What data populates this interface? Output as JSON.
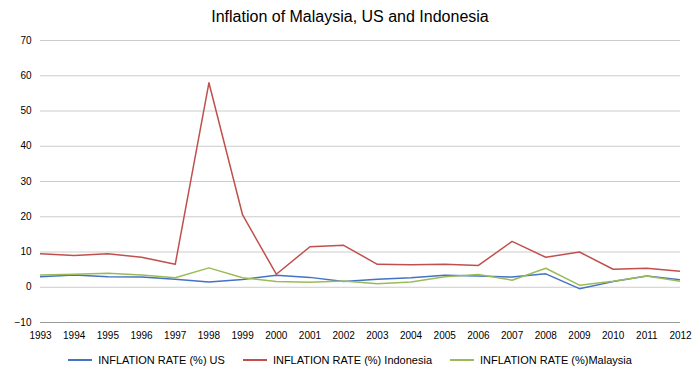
{
  "chart_data": {
    "type": "line",
    "title": "Inflation of Malaysia, US and Indonesia",
    "x": [
      1993,
      1994,
      1995,
      1996,
      1997,
      1998,
      1999,
      2000,
      2001,
      2002,
      2003,
      2004,
      2005,
      2006,
      2007,
      2008,
      2009,
      2010,
      2011,
      2012
    ],
    "series": [
      {
        "name": "INFLATION RATE (%) US",
        "color": "#4472c4",
        "values": [
          3.0,
          3.5,
          3.0,
          2.9,
          2.3,
          1.5,
          2.2,
          3.4,
          2.8,
          1.6,
          2.3,
          2.7,
          3.4,
          3.2,
          2.9,
          3.8,
          -0.4,
          1.6,
          3.2,
          2.1
        ]
      },
      {
        "name": "INFLATION RATE (%) Indonesia",
        "color": "#c0504d",
        "values": [
          9.5,
          9.0,
          9.5,
          8.5,
          6.5,
          58.0,
          20.5,
          3.7,
          11.5,
          11.9,
          6.5,
          6.4,
          6.5,
          6.2,
          13.0,
          8.5,
          10.0,
          5.1,
          5.4,
          4.5
        ]
      },
      {
        "name": "INFLATION RATE (%)Malaysia",
        "color": "#9bbb59",
        "values": [
          3.5,
          3.7,
          4.0,
          3.5,
          2.7,
          5.5,
          2.7,
          1.6,
          1.4,
          1.8,
          1.0,
          1.5,
          3.0,
          3.6,
          2.0,
          5.4,
          0.6,
          1.7,
          3.2,
          1.7
        ]
      }
    ],
    "xlim": [
      1993,
      2012
    ],
    "xticks": [
      1993,
      1994,
      1995,
      1996,
      1997,
      1998,
      1999,
      2000,
      2001,
      2002,
      2003,
      2004,
      2005,
      2006,
      2007,
      2008,
      2009,
      2010,
      2011,
      2012
    ],
    "ylim": [
      -10,
      70
    ],
    "yticks": [
      -10,
      0,
      10,
      20,
      30,
      40,
      50,
      60,
      70
    ],
    "grid": true,
    "legend": "bottom"
  }
}
